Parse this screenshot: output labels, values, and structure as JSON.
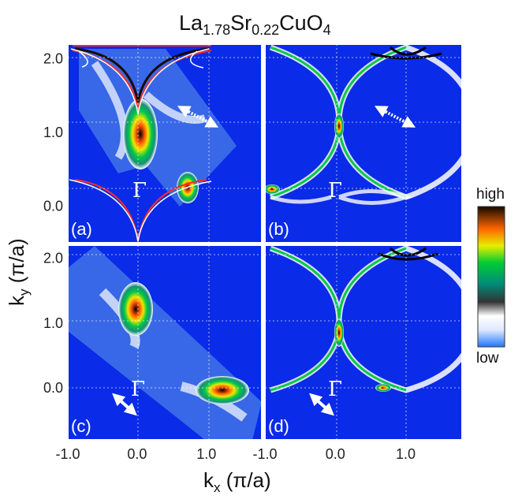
{
  "title": {
    "main": "La",
    "sub1": "1.78",
    "sr": "Sr",
    "sub2": "0.22",
    "cu": "CuO",
    "sub3": "4"
  },
  "axes": {
    "x_label": "k",
    "x_sub": "x",
    "x_unit": " (π/a)",
    "y_label": "k",
    "y_sub": "y",
    "y_unit": " (π/a)"
  },
  "colorbar": {
    "high": "high",
    "low": "low"
  },
  "gamma_symbol": "Γ",
  "chart_data": [
    {
      "type": "heatmap",
      "panel": "(a)",
      "xlim": [
        -1.0,
        1.8
      ],
      "ylim": [
        -0.5,
        2.2
      ],
      "x_ticks": [],
      "y_ticks": [
        "0.0",
        "1.0",
        "2.0"
      ],
      "grid": true,
      "colors": [
        "#1e3cf0",
        "#ffffff",
        "#00c846",
        "#f0e600",
        "#ff6400",
        "#1a0a00"
      ]
    },
    {
      "type": "heatmap",
      "panel": "(b)",
      "xlim": [
        -1.0,
        1.8
      ],
      "ylim": [
        -0.5,
        2.2
      ],
      "x_ticks": [],
      "y_ticks": [],
      "grid": true
    },
    {
      "type": "heatmap",
      "panel": "(c)",
      "xlim": [
        -1.0,
        1.8
      ],
      "ylim": [
        -0.8,
        2.2
      ],
      "x_ticks": [
        "-1.0",
        "0.0",
        "1.0"
      ],
      "y_ticks": [
        "0.0",
        "1.0",
        "2.0"
      ],
      "grid": true
    },
    {
      "type": "heatmap",
      "panel": "(d)",
      "xlim": [
        -1.0,
        1.8
      ],
      "ylim": [
        -0.8,
        2.2
      ],
      "x_ticks": [
        "-1.0",
        "0.0",
        "1.0"
      ],
      "y_ticks": [],
      "grid": true
    }
  ]
}
